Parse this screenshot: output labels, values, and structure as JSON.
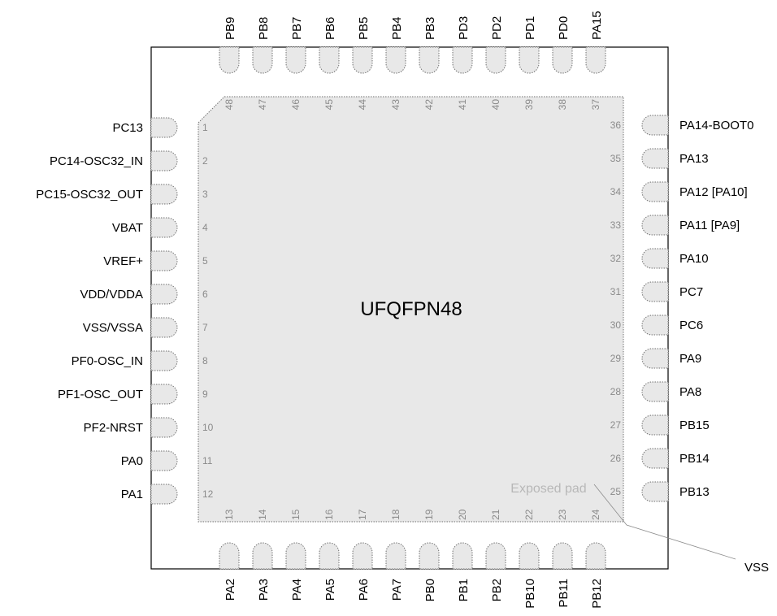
{
  "package": {
    "name": "UFQFPN48",
    "exposed_pad_label": "Exposed pad",
    "exposed_pad_net": "VSS"
  },
  "pins": {
    "left": [
      {
        "num": "1",
        "name": "PC13"
      },
      {
        "num": "2",
        "name": "PC14-OSC32_IN"
      },
      {
        "num": "3",
        "name": "PC15-OSC32_OUT"
      },
      {
        "num": "4",
        "name": "VBAT"
      },
      {
        "num": "5",
        "name": "VREF+"
      },
      {
        "num": "6",
        "name": "VDD/VDDA"
      },
      {
        "num": "7",
        "name": "VSS/VSSA"
      },
      {
        "num": "8",
        "name": "PF0-OSC_IN"
      },
      {
        "num": "9",
        "name": "PF1-OSC_OUT"
      },
      {
        "num": "10",
        "name": "PF2-NRST"
      },
      {
        "num": "11",
        "name": "PA0"
      },
      {
        "num": "12",
        "name": "PA1"
      }
    ],
    "bottom": [
      {
        "num": "13",
        "name": "PA2"
      },
      {
        "num": "14",
        "name": "PA3"
      },
      {
        "num": "15",
        "name": "PA4"
      },
      {
        "num": "16",
        "name": "PA5"
      },
      {
        "num": "17",
        "name": "PA6"
      },
      {
        "num": "18",
        "name": "PA7"
      },
      {
        "num": "19",
        "name": "PB0"
      },
      {
        "num": "20",
        "name": "PB1"
      },
      {
        "num": "21",
        "name": "PB2"
      },
      {
        "num": "22",
        "name": "PB10"
      },
      {
        "num": "23",
        "name": "PB11"
      },
      {
        "num": "24",
        "name": "PB12"
      }
    ],
    "right": [
      {
        "num": "25",
        "name": "PB13"
      },
      {
        "num": "26",
        "name": "PB14"
      },
      {
        "num": "27",
        "name": "PB15"
      },
      {
        "num": "28",
        "name": "PA8"
      },
      {
        "num": "29",
        "name": "PA9"
      },
      {
        "num": "30",
        "name": "PC6"
      },
      {
        "num": "31",
        "name": "PC7"
      },
      {
        "num": "32",
        "name": "PA10"
      },
      {
        "num": "33",
        "name": "PA11 [PA9]"
      },
      {
        "num": "34",
        "name": "PA12 [PA10]"
      },
      {
        "num": "35",
        "name": "PA13"
      },
      {
        "num": "36",
        "name": "PA14-BOOT0"
      }
    ],
    "top": [
      {
        "num": "37",
        "name": "PA15"
      },
      {
        "num": "38",
        "name": "PD0"
      },
      {
        "num": "39",
        "name": "PD1"
      },
      {
        "num": "40",
        "name": "PD2"
      },
      {
        "num": "41",
        "name": "PD3"
      },
      {
        "num": "42",
        "name": "PB3"
      },
      {
        "num": "43",
        "name": "PB4"
      },
      {
        "num": "44",
        "name": "PB5"
      },
      {
        "num": "45",
        "name": "PB6"
      },
      {
        "num": "46",
        "name": "PB7"
      },
      {
        "num": "47",
        "name": "PB8"
      },
      {
        "num": "48",
        "name": "PB9"
      }
    ]
  },
  "colors": {
    "pad_fill": "#e8e8e8",
    "pad_outline": "#707070",
    "body_outline": "#000000",
    "pin_number": "#8a8a8a",
    "exposed_pad_label": "#b8b8b8"
  }
}
